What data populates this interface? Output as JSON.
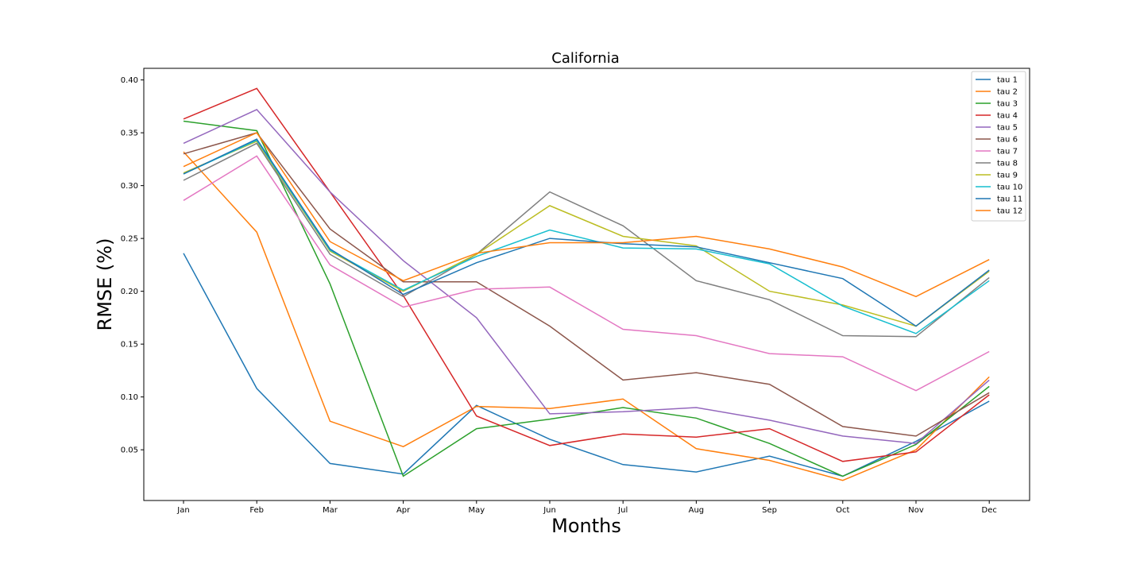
{
  "chart_data": {
    "type": "line",
    "title": "California",
    "xlabel": "Months",
    "ylabel": "RMSE (%)",
    "categories": [
      "Jan",
      "Feb",
      "Mar",
      "Apr",
      "May",
      "Jun",
      "Jul",
      "Aug",
      "Sep",
      "Oct",
      "Nov",
      "Dec"
    ],
    "ylim": [
      0.002,
      0.411
    ],
    "yticks": [
      0.05,
      0.1,
      0.15,
      0.2,
      0.25,
      0.3,
      0.35,
      0.4
    ],
    "ytick_labels": [
      "0.05",
      "0.10",
      "0.15",
      "0.20",
      "0.25",
      "0.30",
      "0.35",
      "0.40"
    ],
    "grid": false,
    "legend_position": "top-right",
    "series": [
      {
        "name": "tau 1",
        "color": "#1f77b4",
        "values": [
          0.236,
          0.108,
          0.037,
          0.027,
          0.092,
          0.06,
          0.036,
          0.029,
          0.044,
          0.025,
          0.058,
          0.096
        ]
      },
      {
        "name": "tau 2",
        "color": "#ff7f0e",
        "values": [
          0.332,
          0.256,
          0.077,
          0.053,
          0.091,
          0.089,
          0.098,
          0.051,
          0.04,
          0.021,
          0.05,
          0.119
        ]
      },
      {
        "name": "tau 3",
        "color": "#2ca02c",
        "values": [
          0.361,
          0.352,
          0.207,
          0.025,
          0.07,
          0.079,
          0.09,
          0.08,
          0.056,
          0.025,
          0.055,
          0.11
        ]
      },
      {
        "name": "tau 4",
        "color": "#d62728",
        "values": [
          0.363,
          0.392,
          0.294,
          0.196,
          0.082,
          0.054,
          0.065,
          0.062,
          0.07,
          0.039,
          0.048,
          0.102
        ]
      },
      {
        "name": "tau 5",
        "color": "#9467bd",
        "values": [
          0.34,
          0.372,
          0.294,
          0.229,
          0.175,
          0.084,
          0.086,
          0.09,
          0.078,
          0.063,
          0.056,
          0.116
        ]
      },
      {
        "name": "tau 6",
        "color": "#8c564b",
        "values": [
          0.33,
          0.35,
          0.259,
          0.209,
          0.209,
          0.167,
          0.116,
          0.123,
          0.112,
          0.072,
          0.063,
          0.104
        ]
      },
      {
        "name": "tau 7",
        "color": "#e377c2",
        "values": [
          0.286,
          0.328,
          0.225,
          0.185,
          0.202,
          0.204,
          0.164,
          0.158,
          0.141,
          0.138,
          0.106,
          0.143
        ]
      },
      {
        "name": "tau 8",
        "color": "#7f7f7f",
        "values": [
          0.305,
          0.34,
          0.235,
          0.195,
          0.235,
          0.294,
          0.262,
          0.21,
          0.192,
          0.158,
          0.157,
          0.213
        ]
      },
      {
        "name": "tau 9",
        "color": "#bcbd22",
        "values": [
          0.312,
          0.342,
          0.238,
          0.2,
          0.235,
          0.281,
          0.252,
          0.243,
          0.2,
          0.187,
          0.167,
          0.219
        ]
      },
      {
        "name": "tau 10",
        "color": "#17becf",
        "values": [
          0.311,
          0.343,
          0.239,
          0.201,
          0.233,
          0.258,
          0.241,
          0.24,
          0.226,
          0.186,
          0.16,
          0.21
        ]
      },
      {
        "name": "tau 11",
        "color": "#1f77b4",
        "values": [
          0.311,
          0.344,
          0.24,
          0.197,
          0.227,
          0.25,
          0.245,
          0.242,
          0.227,
          0.212,
          0.167,
          0.22
        ]
      },
      {
        "name": "tau 12",
        "color": "#ff7f0e",
        "values": [
          0.318,
          0.35,
          0.247,
          0.21,
          0.236,
          0.246,
          0.246,
          0.252,
          0.24,
          0.223,
          0.195,
          0.23
        ]
      }
    ]
  }
}
